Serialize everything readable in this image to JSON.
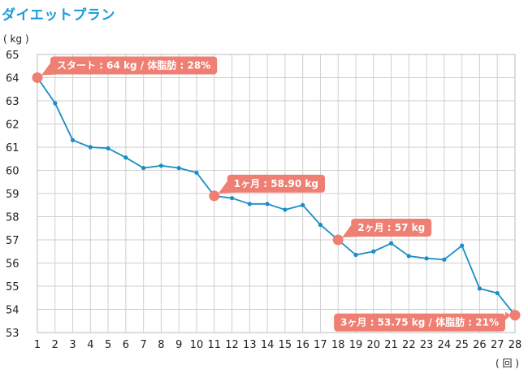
{
  "chart_data": {
    "type": "line",
    "title": "ダイエットプラン",
    "ylabel": "( kg )",
    "xlabel": "( 回 )",
    "ylim": [
      53,
      65
    ],
    "xlim": [
      1,
      28
    ],
    "grid": true,
    "series": [
      {
        "x": [
          1,
          2,
          3,
          4,
          5,
          6,
          7,
          8,
          9,
          10,
          11,
          12,
          13,
          14,
          15,
          16,
          17,
          18,
          19,
          20,
          21,
          22,
          23,
          24,
          25,
          26,
          27,
          28
        ],
        "values": [
          64,
          62.9,
          61.3,
          61.0,
          60.95,
          60.55,
          60.1,
          60.2,
          60.1,
          59.9,
          58.9,
          58.8,
          58.55,
          58.55,
          58.3,
          58.5,
          57.65,
          57.0,
          56.35,
          56.5,
          56.85,
          56.3,
          56.2,
          56.15,
          56.75,
          54.9,
          54.7,
          53.75
        ],
        "color": "#1a8ec4"
      }
    ],
    "annotations": [
      {
        "x": 1,
        "y": 64,
        "text": "スタート : 64 kg / 体脂肪 : 28%",
        "placement": "right-above"
      },
      {
        "x": 11,
        "y": 58.9,
        "text": "1ヶ月 : 58.90 kg",
        "placement": "right-above"
      },
      {
        "x": 18,
        "y": 57.0,
        "text": "2ヶ月 : 57 kg",
        "placement": "right-above"
      },
      {
        "x": 28,
        "y": 53.75,
        "text": "3ヶ月 : 53.75 kg / 体脂肪 : 21%",
        "placement": "left"
      }
    ],
    "highlight_color": "#ef7f72"
  }
}
